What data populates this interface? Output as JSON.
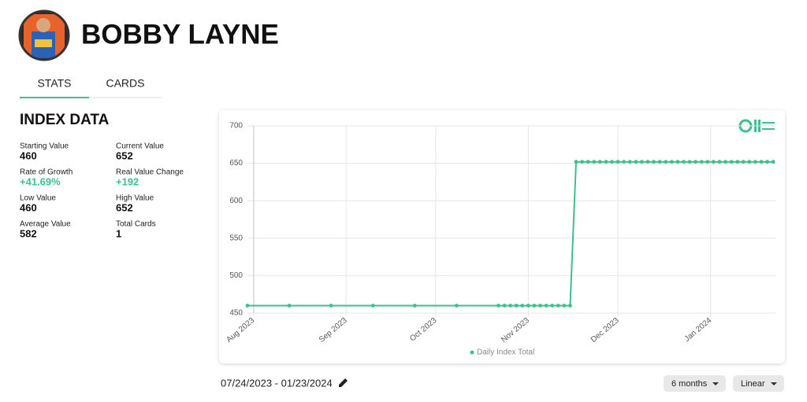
{
  "header": {
    "name": "BOBBY LAYNE"
  },
  "tabs": [
    "STATS",
    "CARDS"
  ],
  "index_data": {
    "title": "INDEX DATA",
    "stats": [
      {
        "label": "Starting Value",
        "value": "460"
      },
      {
        "label": "Current Value",
        "value": "652"
      },
      {
        "label": "Rate of Growth",
        "value": "+41.69%",
        "color": "#3cc08c"
      },
      {
        "label": "Real Value Change",
        "value": "+192",
        "color": "#3cc08c"
      },
      {
        "label": "Low Value",
        "value": "460"
      },
      {
        "label": "High Value",
        "value": "652"
      },
      {
        "label": "Average Value",
        "value": "582"
      },
      {
        "label": "Total Cards",
        "value": "1"
      }
    ]
  },
  "chart_data": {
    "type": "line",
    "x": [
      -2,
      12,
      26,
      40,
      54,
      68,
      82,
      84,
      86,
      88,
      90,
      92,
      94,
      96,
      98,
      100,
      102,
      104,
      106,
      108,
      110,
      112,
      114,
      116,
      118,
      120,
      122,
      124,
      126,
      128,
      130,
      132,
      134,
      136,
      138,
      140,
      142,
      144,
      146,
      148,
      150,
      152,
      154,
      156,
      158,
      160,
      162,
      164,
      166,
      168,
      170,
      172,
      174
    ],
    "series": [
      {
        "name": "Daily Index Total",
        "color": "#3cc08c",
        "values": [
          460,
          460,
          460,
          460,
          460,
          460,
          460,
          460,
          460,
          460,
          460,
          460,
          460,
          460,
          460,
          460,
          460,
          460,
          460,
          652,
          652,
          652,
          652,
          652,
          652,
          652,
          652,
          652,
          652,
          652,
          652,
          652,
          652,
          652,
          652,
          652,
          652,
          652,
          652,
          652,
          652,
          652,
          652,
          652,
          652,
          652,
          652,
          652,
          652,
          652,
          652,
          652,
          652
        ]
      }
    ],
    "xlim": [
      -2,
      175
    ],
    "xticks": [
      {
        "value": 0,
        "label": "Aug 2023"
      },
      {
        "value": 31,
        "label": "Sep 2023"
      },
      {
        "value": 61,
        "label": "Oct 2023"
      },
      {
        "value": 92,
        "label": "Nov 2023"
      },
      {
        "value": 122,
        "label": "Dec 2023"
      },
      {
        "value": 153,
        "label": "Jan 2024"
      }
    ],
    "ylim": [
      450,
      700
    ],
    "yticks": [
      450,
      500,
      550,
      600,
      650,
      700
    ],
    "grid": true
  },
  "controls": {
    "date_range": "07/24/2023 - 01/23/2024",
    "period": "6 months",
    "scale": "Linear"
  }
}
